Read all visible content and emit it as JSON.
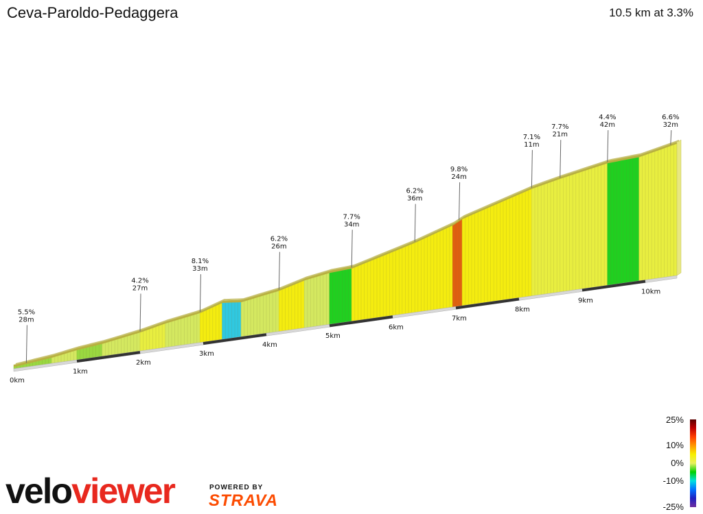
{
  "header": {
    "title": "Ceva-Paroldo-Pedaggera",
    "summary": "10.5 km at 3.3%"
  },
  "chart_data": {
    "type": "area",
    "title": "Ceva-Paroldo-Pedaggera",
    "subtitle": "10.5 km at 3.3%",
    "xlabel": "",
    "ylabel": "",
    "x_unit": "km",
    "xlim": [
      0,
      10.5
    ],
    "x_ticks": [
      "0km",
      "1km",
      "2km",
      "3km",
      "4km",
      "5km",
      "6km",
      "7km",
      "8km",
      "9km",
      "10km"
    ],
    "annotations": [
      {
        "x": 0.2,
        "grade": "5.5%",
        "rise": "28m"
      },
      {
        "x": 2.0,
        "grade": "4.2%",
        "rise": "27m"
      },
      {
        "x": 2.95,
        "grade": "8.1%",
        "rise": "33m"
      },
      {
        "x": 4.2,
        "grade": "6.2%",
        "rise": "26m"
      },
      {
        "x": 5.35,
        "grade": "7.7%",
        "rise": "34m"
      },
      {
        "x": 6.35,
        "grade": "6.2%",
        "rise": "36m"
      },
      {
        "x": 7.05,
        "grade": "9.8%",
        "rise": "24m"
      },
      {
        "x": 8.2,
        "grade": "7.1%",
        "rise": "11m"
      },
      {
        "x": 8.65,
        "grade": "7.7%",
        "rise": "21m"
      },
      {
        "x": 9.4,
        "grade": "4.4%",
        "rise": "42m"
      },
      {
        "x": 10.4,
        "grade": "6.6%",
        "rise": "32m"
      }
    ],
    "segments": [
      {
        "from": 0.0,
        "to": 0.6,
        "grade": 2
      },
      {
        "from": 0.6,
        "to": 1.0,
        "grade": 3
      },
      {
        "from": 1.0,
        "to": 1.4,
        "grade": 2
      },
      {
        "from": 1.4,
        "to": 2.0,
        "grade": 3
      },
      {
        "from": 2.0,
        "to": 2.4,
        "grade": 4
      },
      {
        "from": 2.4,
        "to": 2.95,
        "grade": 3
      },
      {
        "from": 2.95,
        "to": 3.3,
        "grade": 6
      },
      {
        "from": 3.3,
        "to": 3.6,
        "grade": -2
      },
      {
        "from": 3.6,
        "to": 4.2,
        "grade": 3
      },
      {
        "from": 4.2,
        "to": 4.6,
        "grade": 5
      },
      {
        "from": 4.6,
        "to": 5.0,
        "grade": 3
      },
      {
        "from": 5.0,
        "to": 5.35,
        "grade": 1
      },
      {
        "from": 5.35,
        "to": 6.35,
        "grade": 5
      },
      {
        "from": 6.35,
        "to": 6.95,
        "grade": 6
      },
      {
        "from": 6.95,
        "to": 7.1,
        "grade": 9.8
      },
      {
        "from": 7.1,
        "to": 8.2,
        "grade": 5.5
      },
      {
        "from": 8.2,
        "to": 8.65,
        "grade": 4
      },
      {
        "from": 8.65,
        "to": 9.4,
        "grade": 3.5
      },
      {
        "from": 9.4,
        "to": 9.9,
        "grade": 1
      },
      {
        "from": 9.9,
        "to": 10.5,
        "grade": 4
      }
    ],
    "legend": {
      "ticks": [
        "25%",
        "10%",
        "0%",
        "-10%",
        "-25%"
      ],
      "colors": [
        "#5a0000",
        "#c00000",
        "#ff4000",
        "#ff9a00",
        "#f7f000",
        "#e8f060",
        "#00d000",
        "#00e0e0",
        "#0070ff",
        "#2020c0",
        "#7030a0"
      ]
    }
  },
  "branding": {
    "logo_part1": "velo",
    "logo_part2": "viewer",
    "powered_by": "POWERED BY",
    "strava": "STRAVA",
    "logo_color": "#e8281e",
    "strava_color": "#fc4c02"
  }
}
